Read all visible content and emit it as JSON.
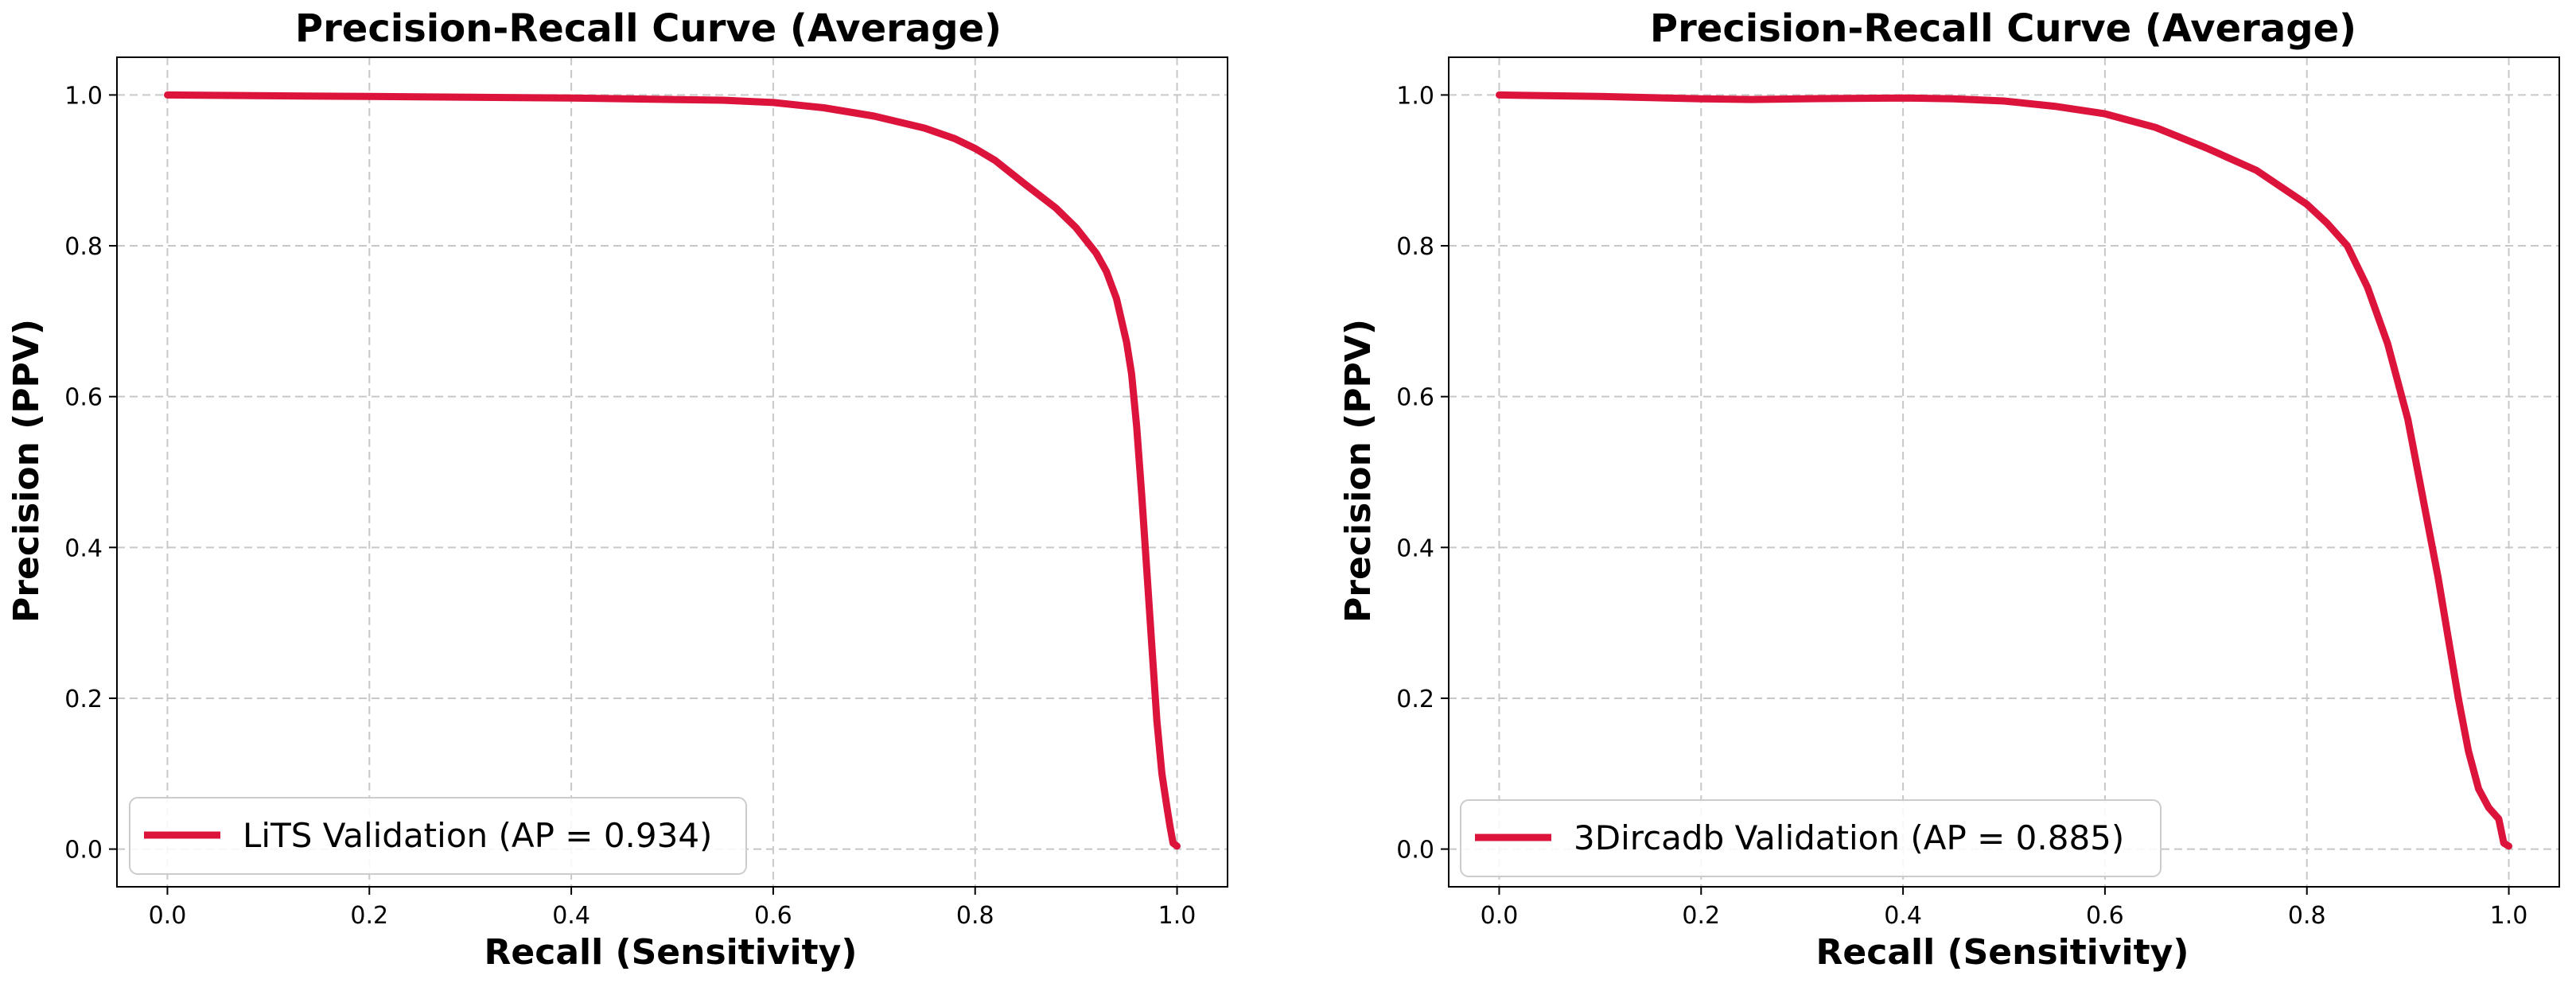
{
  "chart_data": [
    {
      "type": "line",
      "title": "Precision-Recall Curve (Average)",
      "xlabel": "Recall (Sensitivity)",
      "ylabel": "Precision (PPV)",
      "xlim": [
        -0.05,
        1.05
      ],
      "ylim": [
        -0.05,
        1.05
      ],
      "xticks": [
        "0.0",
        "0.2",
        "0.4",
        "0.6",
        "0.8",
        "1.0"
      ],
      "yticks": [
        "0.0",
        "0.2",
        "0.4",
        "0.6",
        "0.8",
        "1.0"
      ],
      "grid": true,
      "legend_position": "lower-left",
      "series": [
        {
          "name": "LiTS Validation (AP = 0.934)",
          "color": "#dc143c",
          "x": [
            0.0,
            0.1,
            0.2,
            0.3,
            0.4,
            0.5,
            0.55,
            0.6,
            0.65,
            0.7,
            0.75,
            0.78,
            0.8,
            0.82,
            0.85,
            0.88,
            0.9,
            0.92,
            0.93,
            0.94,
            0.95,
            0.955,
            0.96,
            0.965,
            0.97,
            0.975,
            0.98,
            0.985,
            0.99,
            0.993,
            0.996,
            1.0
          ],
          "y": [
            1.0,
            0.999,
            0.998,
            0.997,
            0.996,
            0.994,
            0.993,
            0.99,
            0.983,
            0.972,
            0.956,
            0.942,
            0.929,
            0.913,
            0.881,
            0.85,
            0.824,
            0.79,
            0.766,
            0.73,
            0.672,
            0.63,
            0.56,
            0.47,
            0.37,
            0.27,
            0.17,
            0.1,
            0.055,
            0.03,
            0.008,
            0.004
          ]
        },
        {
          "name": "3Dircadb Validation (AP = 0.885)",
          "color": "#dc143c",
          "x": [
            0.0,
            0.1,
            0.2,
            0.25,
            0.3,
            0.4,
            0.45,
            0.5,
            0.55,
            0.6,
            0.65,
            0.7,
            0.75,
            0.8,
            0.82,
            0.84,
            0.86,
            0.88,
            0.9,
            0.91,
            0.92,
            0.93,
            0.94,
            0.95,
            0.96,
            0.97,
            0.98,
            0.99,
            0.995,
            1.0
          ],
          "y": [
            1.0,
            0.998,
            0.995,
            0.994,
            0.995,
            0.996,
            0.995,
            0.992,
            0.985,
            0.975,
            0.957,
            0.93,
            0.9,
            0.855,
            0.83,
            0.8,
            0.745,
            0.67,
            0.57,
            0.5,
            0.43,
            0.36,
            0.28,
            0.2,
            0.13,
            0.08,
            0.055,
            0.04,
            0.008,
            0.004
          ]
        }
      ]
    }
  ]
}
